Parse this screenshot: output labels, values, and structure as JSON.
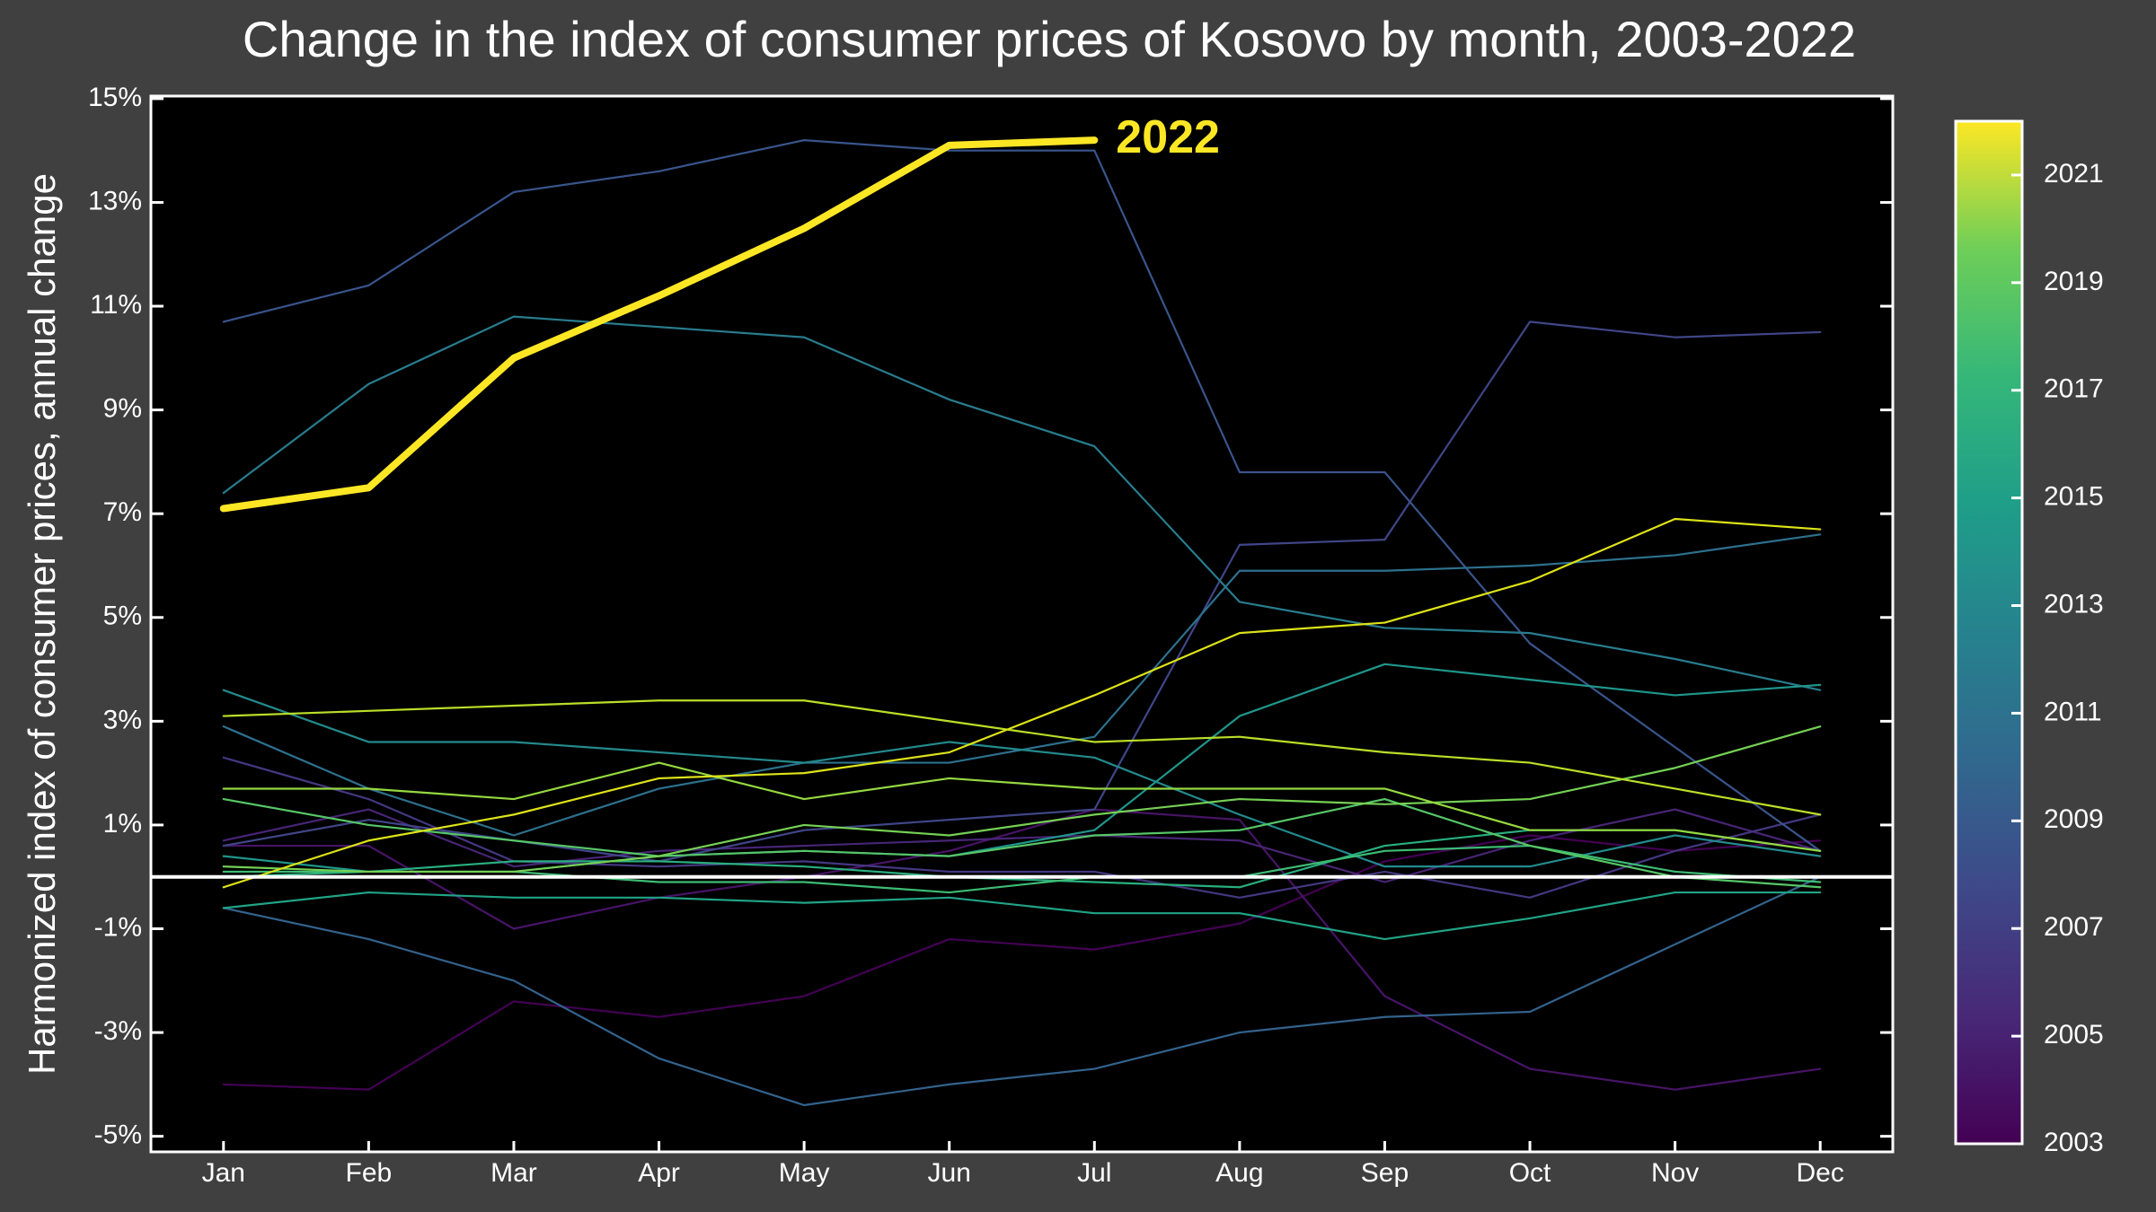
{
  "chart_data": {
    "type": "line",
    "title": "Change in the index of consumer prices of Kosovo by month, 2003-2022",
    "y_label": "Harmonized index of consumer prices, annual change",
    "categories": [
      "Jan",
      "Feb",
      "Mar",
      "Apr",
      "May",
      "Jun",
      "Jul",
      "Aug",
      "Sep",
      "Oct",
      "Nov",
      "Dec"
    ],
    "ylim": [
      -5.3,
      15.05
    ],
    "yticks": [
      {
        "value": -5,
        "label": "-5%"
      },
      {
        "value": -3,
        "label": "-3%"
      },
      {
        "value": -1,
        "label": "-1%"
      },
      {
        "value": 1,
        "label": "1%"
      },
      {
        "value": 3,
        "label": "3%"
      },
      {
        "value": 5,
        "label": "5%"
      },
      {
        "value": 7,
        "label": "7%"
      },
      {
        "value": 9,
        "label": "9%"
      },
      {
        "value": 11,
        "label": "11%"
      },
      {
        "value": 13,
        "label": "13%"
      },
      {
        "value": 15,
        "label": "15%"
      }
    ],
    "reference_line": 0,
    "colorbar": {
      "lim": [
        2003,
        2022
      ],
      "ticks": [
        2003,
        2005,
        2007,
        2009,
        2011,
        2013,
        2015,
        2017,
        2019,
        2021
      ]
    },
    "series": [
      {
        "color": "#440154",
        "values": [
          -4.0,
          -4.1,
          -2.4,
          -2.7,
          -2.3,
          -1.2,
          -1.4,
          -0.9,
          0.3,
          0.8,
          0.5,
          0.7
        ]
      },
      {
        "color": "#481467",
        "values": [
          0.6,
          0.6,
          -1.0,
          -0.4,
          0.0,
          0.5,
          1.3,
          1.1,
          -2.3,
          -3.7,
          -4.1,
          -3.7
        ]
      },
      {
        "color": "#482576",
        "values": [
          0.7,
          1.3,
          0.2,
          0.5,
          0.6,
          0.7,
          0.8,
          0.7,
          -0.1,
          0.7,
          1.3,
          0.5
        ]
      },
      {
        "color": "#453781",
        "values": [
          2.3,
          1.5,
          0.3,
          0.2,
          0.3,
          0.1,
          0.1,
          -0.4,
          0.1,
          -0.4,
          0.5,
          1.2
        ]
      },
      {
        "color": "#404688",
        "values": [
          0.6,
          1.1,
          0.7,
          0.3,
          0.9,
          1.1,
          1.3,
          6.4,
          6.5,
          10.7,
          10.4,
          10.5
        ]
      },
      {
        "color": "#39558c",
        "values": [
          10.7,
          11.4,
          13.2,
          13.6,
          14.2,
          14.0,
          14.0,
          7.8,
          7.8,
          4.5,
          2.5,
          0.5
        ]
      },
      {
        "color": "#33638d",
        "values": [
          -0.6,
          -1.2,
          -2.0,
          -3.5,
          -4.4,
          -4.0,
          -3.7,
          -3.0,
          -2.7,
          -2.6,
          -1.3,
          0.0
        ]
      },
      {
        "color": "#2d718e",
        "values": [
          2.9,
          1.7,
          0.8,
          1.7,
          2.2,
          2.2,
          2.7,
          5.9,
          5.9,
          6.0,
          6.2,
          6.6
        ]
      },
      {
        "color": "#287d8e",
        "values": [
          7.4,
          9.5,
          10.8,
          10.6,
          10.4,
          9.2,
          8.3,
          5.3,
          4.8,
          4.7,
          4.2,
          3.6
        ]
      },
      {
        "color": "#238a8d",
        "values": [
          3.6,
          2.6,
          2.6,
          2.4,
          2.2,
          2.6,
          2.3,
          1.2,
          0.2,
          0.2,
          0.8,
          0.4
        ]
      },
      {
        "color": "#1f968b",
        "values": [
          0.4,
          0.1,
          0.1,
          0.4,
          0.5,
          0.4,
          0.9,
          3.1,
          4.1,
          3.8,
          3.5,
          3.7
        ]
      },
      {
        "color": "#20a386",
        "values": [
          -0.6,
          -0.3,
          -0.4,
          -0.4,
          -0.5,
          -0.4,
          -0.7,
          -0.7,
          -1.2,
          -0.8,
          -0.3,
          -0.3
        ]
      },
      {
        "color": "#29af7f",
        "values": [
          0.0,
          0.1,
          0.3,
          0.3,
          0.2,
          0.0,
          -0.1,
          -0.2,
          0.6,
          0.9,
          0.9,
          0.5
        ]
      },
      {
        "color": "#3dbc74",
        "values": [
          0.1,
          0.1,
          0.1,
          -0.1,
          -0.1,
          -0.3,
          0.0,
          0.0,
          0.5,
          0.6,
          0.1,
          -0.1
        ]
      },
      {
        "color": "#56c667",
        "values": [
          1.5,
          1.0,
          0.7,
          0.4,
          0.5,
          0.4,
          0.8,
          0.9,
          1.5,
          0.6,
          0.0,
          -0.2
        ]
      },
      {
        "color": "#75d054",
        "values": [
          0.2,
          0.1,
          0.1,
          0.4,
          1.0,
          0.8,
          1.2,
          1.5,
          1.4,
          1.5,
          2.1,
          2.9
        ]
      },
      {
        "color": "#95d840",
        "values": [
          1.7,
          1.7,
          1.5,
          2.2,
          1.5,
          1.9,
          1.7,
          1.7,
          1.7,
          0.9,
          0.9,
          0.5
        ]
      },
      {
        "color": "#bade28",
        "values": [
          3.1,
          3.2,
          3.3,
          3.4,
          3.4,
          3.0,
          2.6,
          2.7,
          2.4,
          2.2,
          1.7,
          1.2
        ]
      },
      {
        "color": "#dde318",
        "values": [
          -0.2,
          0.7,
          1.2,
          1.9,
          2.0,
          2.4,
          3.5,
          4.7,
          4.9,
          5.7,
          6.9,
          6.7
        ]
      },
      {
        "name": "2022",
        "color": "#fde725",
        "highlight": true,
        "values": [
          7.1,
          7.5,
          10.0,
          11.2,
          12.5,
          14.1,
          14.2,
          null,
          null,
          null,
          null,
          null
        ]
      }
    ]
  }
}
